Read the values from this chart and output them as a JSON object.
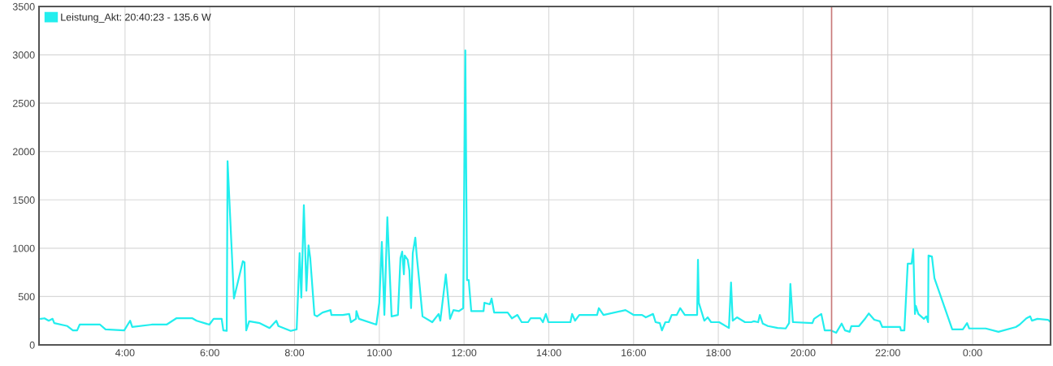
{
  "chart_data": {
    "type": "line",
    "xlim": [
      1.97,
      25.84
    ],
    "ylim": [
      0,
      3500
    ],
    "xticks": [
      {
        "value": 4,
        "label": "4:00"
      },
      {
        "value": 6,
        "label": "6:00"
      },
      {
        "value": 8,
        "label": "8:00"
      },
      {
        "value": 10,
        "label": "10:00"
      },
      {
        "value": 12,
        "label": "12:00"
      },
      {
        "value": 14,
        "label": "14:00"
      },
      {
        "value": 16,
        "label": "16:00"
      },
      {
        "value": 18,
        "label": "18:00"
      },
      {
        "value": 20,
        "label": "20:00"
      },
      {
        "value": 22,
        "label": "22:00"
      },
      {
        "value": 24,
        "label": "0:00"
      }
    ],
    "yticks": [
      0,
      500,
      1000,
      1500,
      2000,
      2500,
      3000,
      3500
    ],
    "grid": true,
    "legend": "top left",
    "marker": "none",
    "line_style": "solid",
    "ref_lines": [
      {
        "axis": "x",
        "value": 20.673,
        "color": "#c87a7a"
      }
    ],
    "series": [
      {
        "name": "Leistung_Akt: 20:40:23 - 135.6 W",
        "color": "#22eeee",
        "x": [
          2.01,
          2.1,
          2.2,
          2.29,
          2.33,
          2.64,
          2.77,
          2.87,
          2.93,
          3.41,
          3.54,
          3.98,
          4.12,
          4.17,
          4.63,
          4.98,
          5.21,
          5.59,
          5.69,
          5.99,
          6.09,
          6.28,
          6.32,
          6.4,
          6.42,
          6.57,
          6.78,
          6.82,
          6.86,
          6.93,
          7.18,
          7.41,
          7.57,
          7.62,
          7.91,
          8.05,
          8.12,
          8.16,
          8.22,
          8.28,
          8.33,
          8.37,
          8.47,
          8.53,
          8.66,
          8.85,
          8.87,
          9.14,
          9.29,
          9.33,
          9.45,
          9.46,
          9.52,
          9.93,
          10.0,
          10.06,
          10.12,
          10.19,
          10.29,
          10.44,
          10.5,
          10.54,
          10.58,
          10.6,
          10.67,
          10.71,
          10.75,
          10.79,
          10.85,
          10.88,
          10.94,
          11.02,
          11.25,
          11.4,
          11.44,
          11.57,
          11.67,
          11.75,
          11.88,
          11.98,
          12.03,
          12.07,
          12.11,
          12.17,
          12.46,
          12.48,
          12.61,
          12.65,
          12.71,
          13.03,
          13.13,
          13.26,
          13.36,
          13.51,
          13.57,
          13.8,
          13.86,
          13.93,
          13.99,
          14.51,
          14.55,
          14.62,
          14.72,
          15.14,
          15.18,
          15.29,
          15.81,
          16.0,
          16.2,
          16.29,
          16.46,
          16.52,
          16.62,
          16.67,
          16.75,
          16.83,
          16.9,
          17.02,
          17.1,
          17.21,
          17.5,
          17.52,
          17.54,
          17.67,
          17.75,
          17.83,
          18.02,
          18.25,
          18.3,
          18.34,
          18.44,
          18.63,
          18.78,
          18.84,
          18.94,
          18.98,
          19.05,
          19.17,
          19.4,
          19.59,
          19.67,
          19.7,
          19.76,
          19.78,
          20.22,
          20.26,
          20.43,
          20.51,
          20.66,
          20.78,
          20.91,
          20.99,
          21.1,
          21.14,
          21.32,
          21.47,
          21.55,
          21.68,
          21.81,
          21.87,
          22.29,
          22.31,
          22.39,
          22.47,
          22.56,
          22.6,
          22.64,
          22.66,
          22.72,
          22.85,
          22.91,
          22.95,
          22.96,
          23.04,
          23.1,
          23.52,
          23.77,
          23.87,
          23.92,
          24.31,
          24.61,
          25.02,
          25.11,
          25.27,
          25.36,
          25.4,
          25.53,
          25.78,
          25.84
        ],
        "values": [
          270,
          275,
          250,
          270,
          225,
          195,
          150,
          150,
          210,
          210,
          160,
          150,
          250,
          185,
          210,
          210,
          275,
          275,
          250,
          210,
          270,
          270,
          150,
          145,
          1900,
          480,
          865,
          855,
          150,
          245,
          225,
          175,
          250,
          195,
          145,
          160,
          950,
          490,
          1445,
          560,
          1030,
          900,
          310,
          295,
          335,
          360,
          310,
          310,
          320,
          235,
          270,
          350,
          270,
          210,
          435,
          1065,
          310,
          1320,
          295,
          310,
          900,
          965,
          730,
          925,
          880,
          770,
          380,
          950,
          1110,
          940,
          670,
          295,
          235,
          320,
          250,
          730,
          270,
          360,
          350,
          380,
          3045,
          670,
          670,
          350,
          350,
          435,
          420,
          480,
          335,
          335,
          275,
          310,
          235,
          235,
          275,
          275,
          235,
          320,
          235,
          235,
          320,
          250,
          310,
          310,
          380,
          310,
          360,
          310,
          310,
          285,
          320,
          235,
          225,
          150,
          235,
          235,
          310,
          310,
          380,
          310,
          310,
          880,
          435,
          250,
          285,
          235,
          235,
          175,
          645,
          250,
          285,
          235,
          235,
          245,
          235,
          310,
          220,
          195,
          175,
          170,
          225,
          630,
          235,
          235,
          225,
          270,
          320,
          150,
          150,
          125,
          220,
          150,
          135,
          195,
          195,
          275,
          325,
          260,
          245,
          185,
          185,
          150,
          150,
          840,
          840,
          990,
          320,
          405,
          320,
          270,
          295,
          235,
          925,
          915,
          690,
          160,
          160,
          225,
          170,
          170,
          135,
          185,
          210,
          275,
          295,
          250,
          270,
          260,
          235
        ]
      }
    ]
  }
}
